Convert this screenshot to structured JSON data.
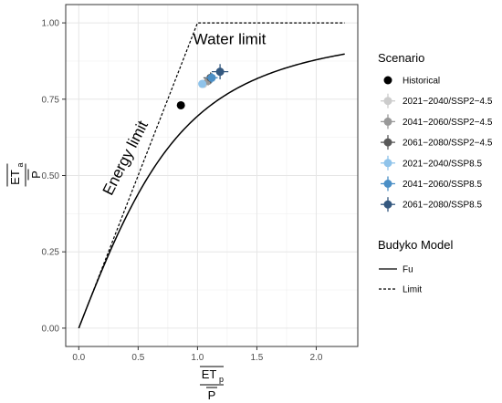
{
  "chart_data": {
    "type": "scatter",
    "xlim": [
      -0.11,
      2.35
    ],
    "ylim": [
      -0.06,
      1.06
    ],
    "x_ticks": [
      "0.0",
      "0.5",
      "1.0",
      "1.5",
      "2.0"
    ],
    "y_ticks": [
      "0.00",
      "0.25",
      "0.50",
      "0.75",
      "1.00"
    ],
    "grid": true,
    "xlabel": {
      "top": "ET",
      "top_sub": "p",
      "bottom": "P"
    },
    "ylabel": {
      "top": "ET",
      "top_sub": "a",
      "bottom": "P"
    },
    "annotations": [
      {
        "text": "Water limit",
        "x": 1.27,
        "y": 0.93
      },
      {
        "text": "Energy limit",
        "x": 0.43,
        "y": 0.55
      }
    ],
    "budyko_model": {
      "fu_parameter": 2.6,
      "fu_x_range": [
        0,
        2.24
      ],
      "limit_points": [
        [
          0,
          0
        ],
        [
          1.0,
          1.0
        ],
        [
          2.24,
          1.0
        ]
      ]
    },
    "series": [
      {
        "name": "Historical",
        "x": 0.86,
        "y": 0.73,
        "xerr": 0.0,
        "yerr": 0.0,
        "color": "#000000"
      },
      {
        "name": "2021−2040/SSP2−4.5",
        "x": 1.05,
        "y": 0.8,
        "xerr": 0.03,
        "yerr": 0.012,
        "color": "#cccccc"
      },
      {
        "name": "2041−2060/SSP2−4.5",
        "x": 1.09,
        "y": 0.81,
        "xerr": 0.05,
        "yerr": 0.015,
        "color": "#999999"
      },
      {
        "name": "2061−2080/SSP2−4.5",
        "x": 1.11,
        "y": 0.82,
        "xerr": 0.06,
        "yerr": 0.018,
        "color": "#595959"
      },
      {
        "name": "2021−2040/SSP8.5",
        "x": 1.04,
        "y": 0.8,
        "xerr": 0.03,
        "yerr": 0.012,
        "color": "#8fc3ea"
      },
      {
        "name": "2041−2060/SSP8.5",
        "x": 1.12,
        "y": 0.82,
        "xerr": 0.05,
        "yerr": 0.016,
        "color": "#4b8fc6"
      },
      {
        "name": "2061−2080/SSP8.5",
        "x": 1.19,
        "y": 0.84,
        "xerr": 0.07,
        "yerr": 0.025,
        "color": "#34587f"
      }
    ],
    "legend": {
      "placement": "right",
      "scenario_title": "Scenario",
      "model_title": "Budyko Model",
      "model_entries": [
        {
          "name": "Fu",
          "style": "solid"
        },
        {
          "name": "Limit",
          "style": "dashed"
        }
      ]
    }
  }
}
